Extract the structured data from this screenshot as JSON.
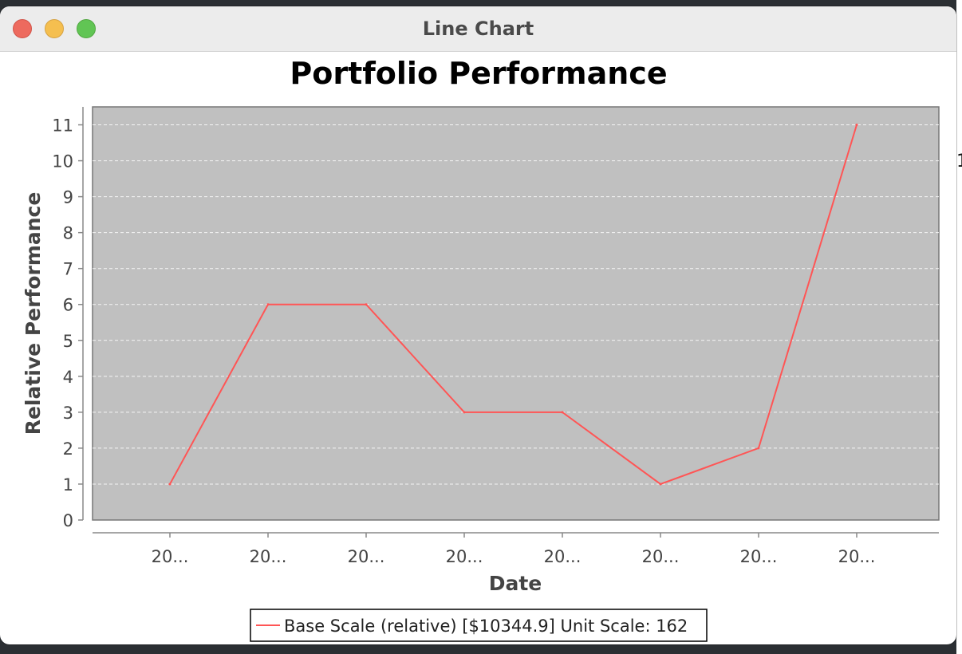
{
  "window": {
    "title": "Line Chart"
  },
  "clipped_text": "1",
  "colors": {
    "plot_background": "#c0c0c0",
    "series_line": "#ff5555",
    "gridline": "#ffffff",
    "window_background": "#ffffff",
    "titlebar": "#ececec"
  },
  "chart_data": {
    "type": "line",
    "title": "Portfolio Performance",
    "xlabel": "Date",
    "ylabel": "Relative Performance",
    "x_tick_labels": [
      "20...",
      "20...",
      "20...",
      "20...",
      "20...",
      "20...",
      "20...",
      "20..."
    ],
    "y_ticks": [
      0,
      1,
      2,
      3,
      4,
      5,
      6,
      7,
      8,
      9,
      10,
      11
    ],
    "ylim": [
      0,
      11.5
    ],
    "grid": true,
    "legend_position": "bottom-center",
    "series": [
      {
        "name": "Base Scale (relative) [$10344.9] Unit Scale: 162",
        "values": [
          1,
          6,
          6,
          3,
          3,
          1,
          2,
          11
        ]
      }
    ]
  }
}
